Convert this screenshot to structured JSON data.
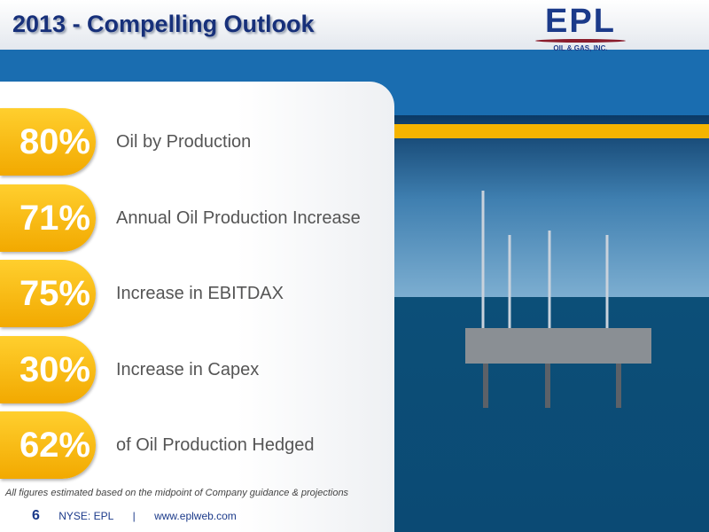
{
  "header": {
    "title": "2013 - Compelling Outlook"
  },
  "logo": {
    "name": "EPL",
    "tagline": "OIL & GAS, INC."
  },
  "items": [
    {
      "figure": "80%",
      "text": "Oil by Production"
    },
    {
      "figure": "71%",
      "text": "Annual Oil Production Increase"
    },
    {
      "figure": "75%",
      "text": "Increase in EBITDAX"
    },
    {
      "figure": "30%",
      "text": "Increase in Capex"
    },
    {
      "figure": "62%",
      "text": "of Oil Production Hedged"
    }
  ],
  "footnote": "All figures estimated based on the midpoint of Company guidance & projections",
  "footer": {
    "page": "6",
    "ticker": "NYSE: EPL",
    "separator": "|",
    "url": "www.eplweb.com"
  }
}
